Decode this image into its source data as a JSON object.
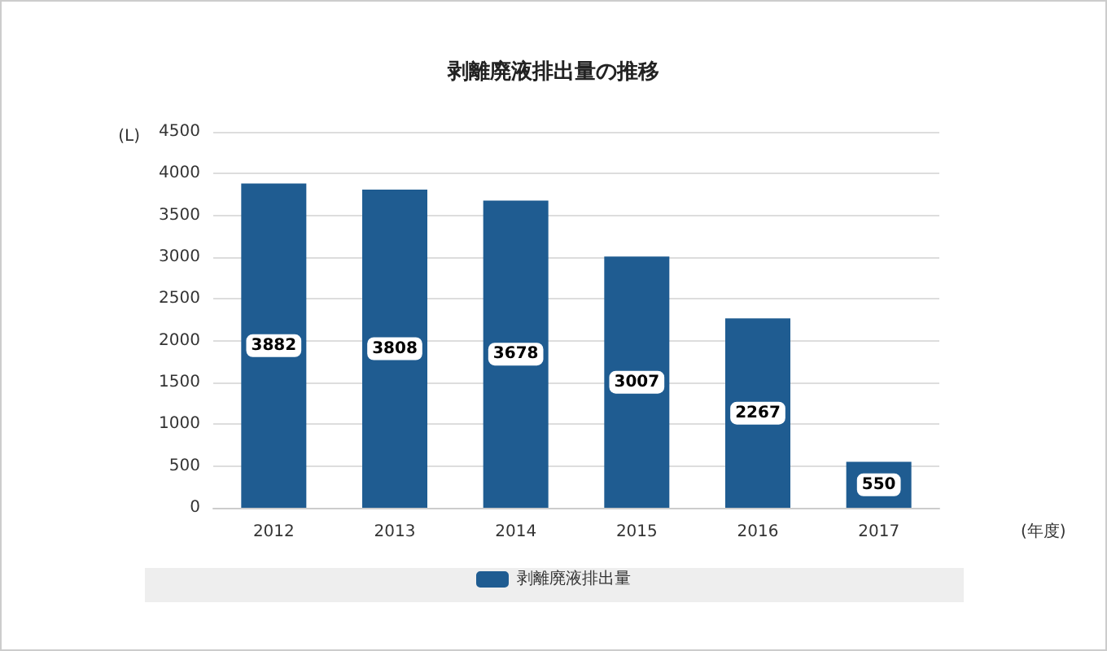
{
  "chart_data": {
    "type": "bar",
    "title": "剥離廃液排出量の推移",
    "xlabel": "(年度)",
    "ylabel": "(L)",
    "categories": [
      "2012",
      "2013",
      "2014",
      "2015",
      "2016",
      "2017"
    ],
    "series": [
      {
        "name": "剥離廃液排出量",
        "color": "#1f5c91",
        "values": [
          3882,
          3808,
          3678,
          3007,
          2267,
          550
        ]
      }
    ],
    "ylim": [
      0,
      4500
    ],
    "yticks": [
      0,
      500,
      1000,
      1500,
      2000,
      2500,
      3000,
      3500,
      4000,
      4500
    ],
    "grid": "y",
    "legend": "bottom",
    "data_labels": true
  }
}
